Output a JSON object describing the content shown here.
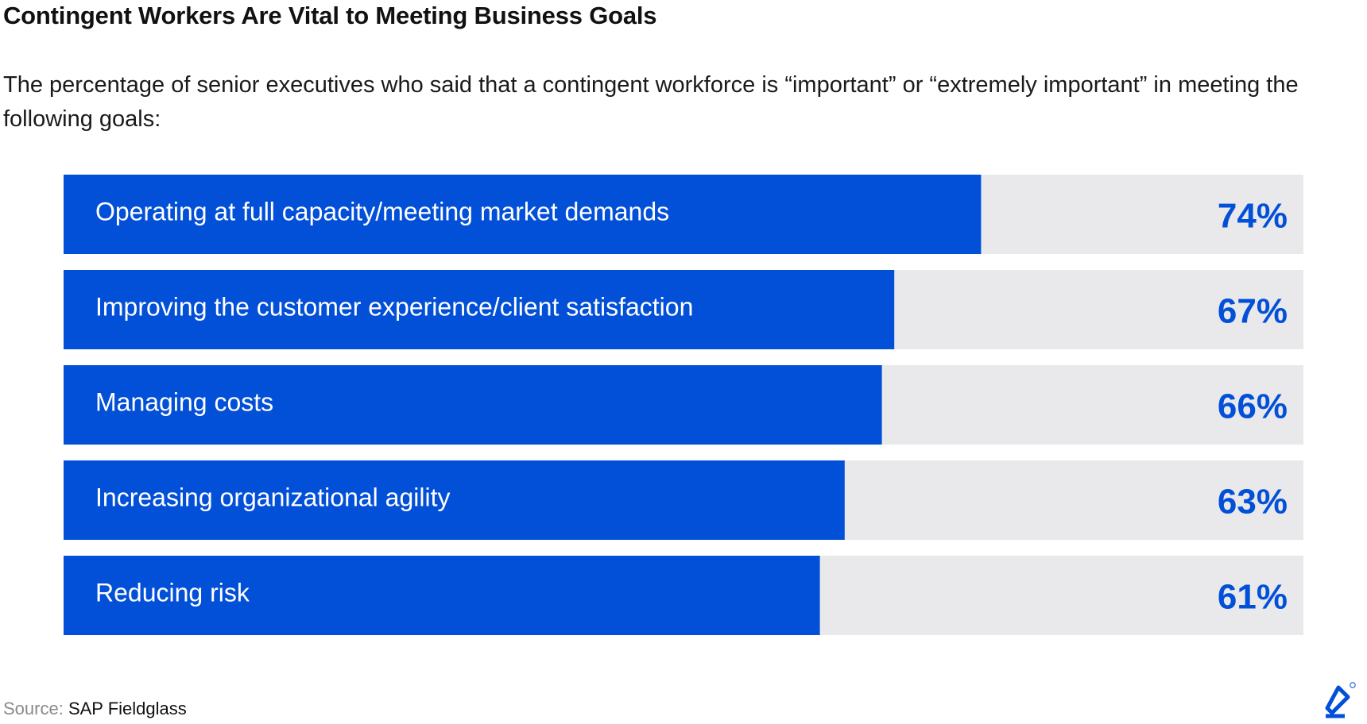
{
  "title": "Contingent Workers Are Vital to Meeting Business Goals",
  "subtitle": "The percentage of senior executives who said that a contingent workforce is “important” or “extremely important” in meeting the following goals:",
  "source": {
    "label": "Source:",
    "name": "SAP Fieldglass"
  },
  "colors": {
    "bar": "#0350d8",
    "track": "#e9e9eb",
    "value_text": "#0350d8",
    "label_text": "#ffffff"
  },
  "logo": {
    "icon": "toptal-logo-icon"
  },
  "chart_data": {
    "type": "bar",
    "orientation": "horizontal",
    "categories": [
      "Operating at full capacity/meeting market demands",
      "Improving the customer experience/client satisfaction",
      "Managing costs",
      "Increasing organizational agility",
      "Reducing risk"
    ],
    "values": [
      74,
      67,
      66,
      63,
      61
    ],
    "value_labels": [
      "74%",
      "67%",
      "66%",
      "63%",
      "61%"
    ],
    "xlim": [
      0,
      100
    ],
    "grid": false,
    "legend": "none"
  }
}
